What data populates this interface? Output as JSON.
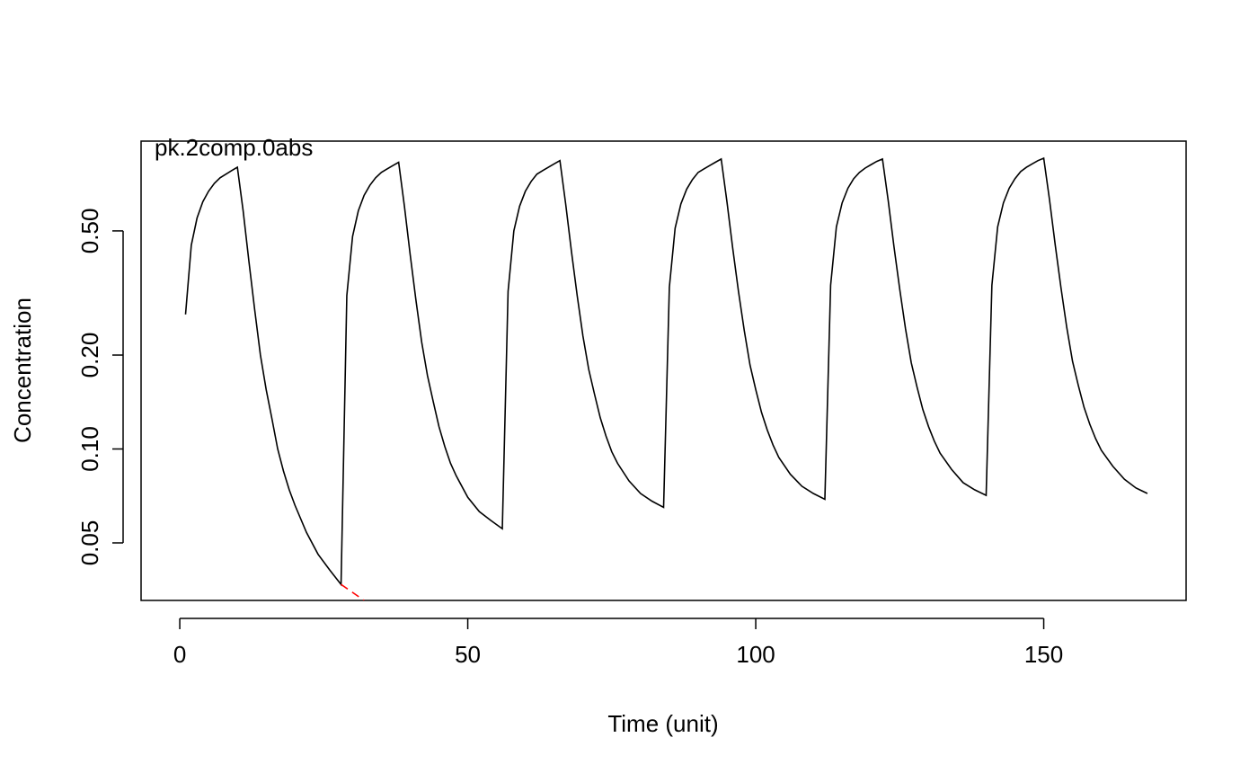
{
  "chart_data": {
    "type": "line",
    "title": "pk.2comp.0abs",
    "title_color": "#1a4a8a",
    "xlabel": "Time (unit)",
    "ylabel": "Concentration",
    "xlim": [
      -6.72,
      174.72
    ],
    "xticks": [
      0,
      50,
      100,
      150
    ],
    "ylim": [
      0.0327,
      0.97
    ],
    "log_y": true,
    "yticks": [
      0.05,
      {
        "value": 0.1,
        "label": "0.10"
      },
      {
        "value": 0.2,
        "label": "0.20"
      },
      {
        "value": 0.5,
        "label": "0.50"
      }
    ],
    "series": [
      {
        "color": "#000000",
        "linestyle": "solid",
        "x": [
          1,
          2,
          3,
          4,
          5,
          6,
          7,
          8,
          9,
          10,
          11,
          12,
          13,
          14,
          15,
          16,
          17,
          18,
          19,
          20,
          22,
          24,
          26,
          28,
          29,
          30,
          31,
          32,
          33,
          34,
          35,
          36,
          37,
          38,
          39,
          40,
          41,
          42,
          43,
          44,
          45,
          46,
          47,
          48,
          50,
          52,
          54,
          56,
          57,
          58,
          59,
          60,
          61,
          62,
          63,
          64,
          65,
          66,
          67,
          68,
          69,
          70,
          71,
          72,
          73,
          74,
          75,
          76,
          78,
          80,
          82,
          84,
          85,
          86,
          87,
          88,
          89,
          90,
          91,
          92,
          93,
          94,
          95,
          96,
          97,
          98,
          99,
          100,
          101,
          102,
          103,
          104,
          106,
          108,
          110,
          112,
          113,
          114,
          115,
          116,
          117,
          118,
          119,
          120,
          121,
          122,
          123,
          124,
          125,
          126,
          127,
          128,
          129,
          130,
          131,
          132,
          134,
          136,
          138,
          140,
          141,
          142,
          143,
          144,
          145,
          146,
          147,
          148,
          149,
          150,
          151,
          152,
          153,
          154,
          155,
          156,
          157,
          158,
          159,
          160,
          162,
          164,
          166,
          168
        ],
        "values": [
          0.27,
          0.45,
          0.55,
          0.62,
          0.67,
          0.71,
          0.74,
          0.76,
          0.78,
          0.8,
          0.58,
          0.4,
          0.28,
          0.2,
          0.155,
          0.125,
          0.1,
          0.085,
          0.074,
          0.066,
          0.054,
          0.046,
          0.041,
          0.0368,
          0.31,
          0.48,
          0.58,
          0.65,
          0.7,
          0.74,
          0.77,
          0.79,
          0.81,
          0.83,
          0.6,
          0.42,
          0.3,
          0.22,
          0.172,
          0.142,
          0.118,
          0.102,
          0.09,
          0.082,
          0.07,
          0.063,
          0.059,
          0.0555,
          0.32,
          0.5,
          0.6,
          0.67,
          0.72,
          0.76,
          0.78,
          0.8,
          0.82,
          0.84,
          0.61,
          0.43,
          0.31,
          0.23,
          0.18,
          0.15,
          0.126,
          0.11,
          0.098,
          0.09,
          0.079,
          0.072,
          0.068,
          0.065,
          0.33,
          0.51,
          0.61,
          0.68,
          0.73,
          0.77,
          0.79,
          0.81,
          0.83,
          0.85,
          0.62,
          0.44,
          0.32,
          0.24,
          0.186,
          0.155,
          0.131,
          0.115,
          0.103,
          0.094,
          0.083,
          0.076,
          0.072,
          0.069,
          0.335,
          0.515,
          0.615,
          0.685,
          0.735,
          0.77,
          0.795,
          0.815,
          0.835,
          0.85,
          0.625,
          0.445,
          0.325,
          0.243,
          0.189,
          0.158,
          0.134,
          0.118,
          0.106,
          0.097,
          0.086,
          0.078,
          0.074,
          0.071,
          0.335,
          0.515,
          0.615,
          0.685,
          0.735,
          0.775,
          0.8,
          0.82,
          0.84,
          0.855,
          0.63,
          0.45,
          0.328,
          0.245,
          0.191,
          0.16,
          0.136,
          0.12,
          0.108,
          0.099,
          0.088,
          0.08,
          0.075,
          0.072
        ]
      },
      {
        "color": "#ff0000",
        "linestyle": "dashed",
        "x": [
          28,
          32
        ],
        "values": [
          0.0368,
          0.0327
        ]
      }
    ]
  }
}
